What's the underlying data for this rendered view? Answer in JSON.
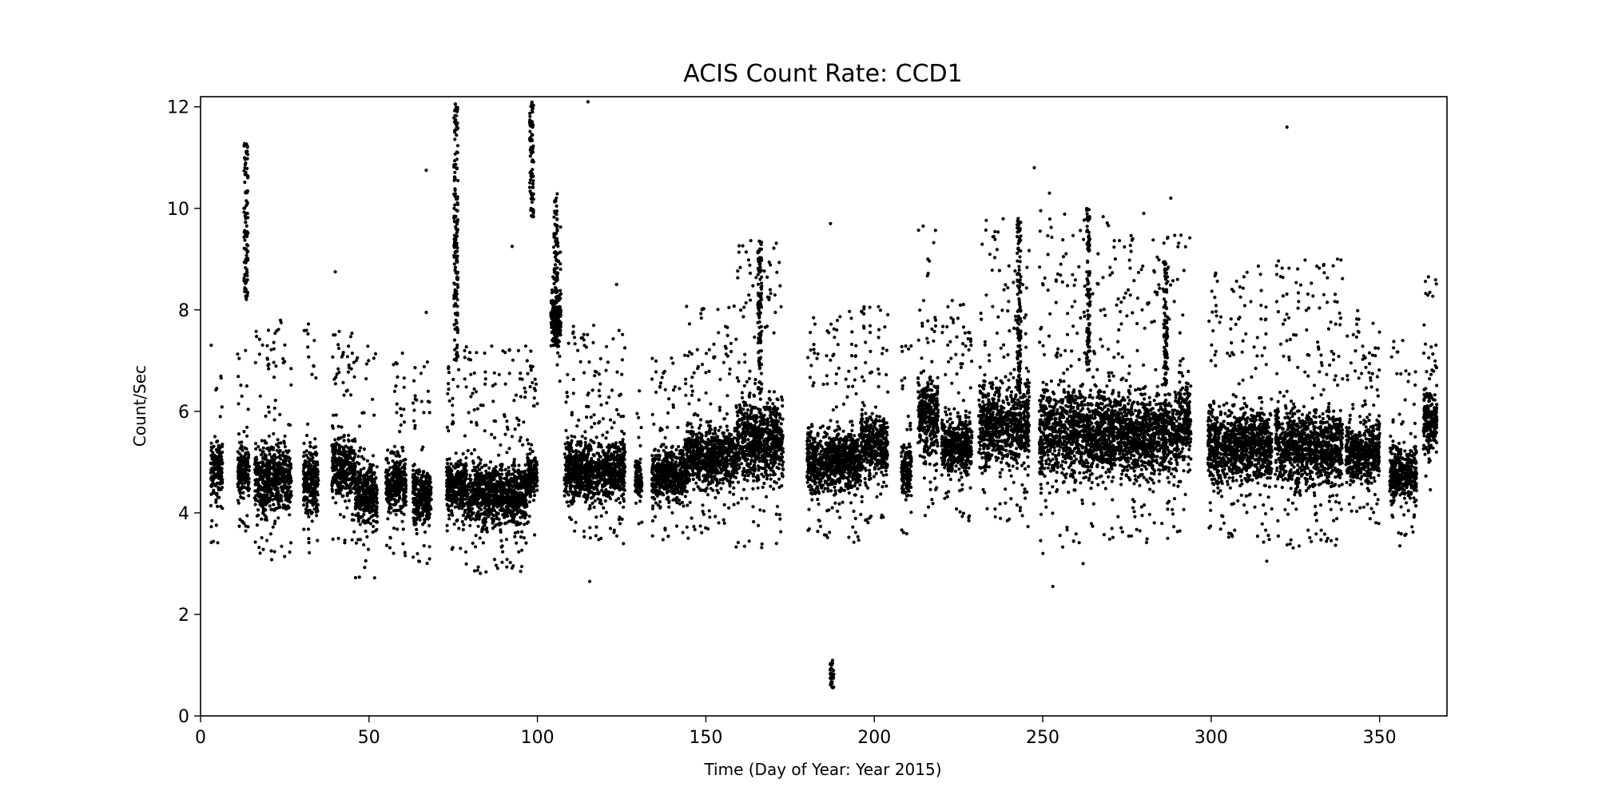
{
  "chart_data": {
    "type": "scatter",
    "title": "ACIS Count Rate: CCD1",
    "xlabel": "Time (Day of Year: Year 2015)",
    "ylabel": "Count/Sec",
    "xlim": [
      0,
      370
    ],
    "ylim": [
      0,
      12.2
    ],
    "x_ticks": [
      0,
      50,
      100,
      150,
      200,
      250,
      300,
      350
    ],
    "y_ticks": [
      0,
      2,
      4,
      6,
      8,
      10,
      12
    ],
    "grid": false,
    "legend": "none",
    "marker_color": "#000000",
    "observation_windows": [
      {
        "x": [
          3,
          6.5
        ],
        "y": [
          3.3,
          7.7
        ]
      },
      {
        "x": [
          11,
          14.5
        ],
        "y": [
          3.5,
          7.2
        ]
      },
      {
        "x": [
          16,
          27
        ],
        "y": [
          3.0,
          7.8
        ]
      },
      {
        "x": [
          30.5,
          35
        ],
        "y": [
          3.0,
          7.8
        ]
      },
      {
        "x": [
          39,
          46
        ],
        "y": [
          3.4,
          7.6
        ]
      },
      {
        "x": [
          46,
          52.5
        ],
        "y": [
          2.7,
          7.5
        ]
      },
      {
        "x": [
          55,
          61
        ],
        "y": [
          3.1,
          7.3
        ]
      },
      {
        "x": [
          63,
          68.5
        ],
        "y": [
          2.9,
          7.0
        ]
      },
      {
        "x": [
          73,
          78
        ],
        "y": [
          3.2,
          7.0
        ]
      },
      {
        "x": [
          78,
          97
        ],
        "y": [
          2.8,
          7.3
        ]
      },
      {
        "x": [
          97,
          100
        ],
        "y": [
          3.4,
          7.2
        ]
      },
      {
        "x": [
          104,
          107
        ],
        "y": [
          6.5,
          10.3
        ]
      },
      {
        "x": [
          108,
          126
        ],
        "y": [
          3.3,
          7.7
        ]
      },
      {
        "x": [
          129,
          131
        ],
        "y": [
          3.7,
          6.5
        ]
      },
      {
        "x": [
          134,
          144
        ],
        "y": [
          3.4,
          7.3
        ]
      },
      {
        "x": [
          144,
          159
        ],
        "y": [
          3.5,
          8.1
        ]
      },
      {
        "x": [
          159,
          173
        ],
        "y": [
          3.3,
          9.4
        ]
      },
      {
        "x": [
          180,
          196
        ],
        "y": [
          3.4,
          8.0
        ]
      },
      {
        "x": [
          196,
          204
        ],
        "y": [
          3.8,
          8.2
        ]
      },
      {
        "x": [
          208,
          211
        ],
        "y": [
          3.5,
          7.3
        ]
      },
      {
        "x": [
          213,
          219
        ],
        "y": [
          3.9,
          9.7
        ]
      },
      {
        "x": [
          220,
          229
        ],
        "y": [
          3.8,
          8.2
        ]
      },
      {
        "x": [
          231,
          246
        ],
        "y": [
          3.6,
          9.8
        ]
      },
      {
        "x": [
          249,
          270
        ],
        "y": [
          3.2,
          10.0
        ]
      },
      {
        "x": [
          270,
          290
        ],
        "y": [
          3.4,
          9.5
        ]
      },
      {
        "x": [
          290,
          294
        ],
        "y": [
          3.6,
          9.9
        ]
      },
      {
        "x": [
          299,
          318
        ],
        "y": [
          3.4,
          8.9
        ]
      },
      {
        "x": [
          319,
          339
        ],
        "y": [
          3.3,
          9.0
        ]
      },
      {
        "x": [
          340,
          350
        ],
        "y": [
          3.7,
          8.0
        ]
      },
      {
        "x": [
          353,
          361
        ],
        "y": [
          3.4,
          7.4
        ]
      },
      {
        "x": [
          363,
          367
        ],
        "y": [
          4.2,
          8.7
        ]
      }
    ],
    "flare_columns": [
      {
        "x": 13.5,
        "y": [
          8.2,
          11.3
        ]
      },
      {
        "x": 75.8,
        "y": [
          7.0,
          12.1
        ]
      },
      {
        "x": 98.3,
        "y": [
          9.8,
          12.1
        ]
      },
      {
        "x": 105.5,
        "y": [
          7.3,
          10.3
        ]
      },
      {
        "x": 166,
        "y": [
          6.4,
          9.4
        ]
      },
      {
        "x": 243,
        "y": [
          6.5,
          9.8
        ]
      },
      {
        "x": 263.5,
        "y": [
          6.8,
          10.0
        ]
      },
      {
        "x": 286.5,
        "y": [
          6.5,
          9.0
        ]
      },
      {
        "x": 187.5,
        "y": [
          0.5,
          1.1
        ]
      }
    ],
    "isolated_points": [
      {
        "x": 40,
        "y": 8.75
      },
      {
        "x": 67,
        "y": 10.75
      },
      {
        "x": 67,
        "y": 7.95
      },
      {
        "x": 92.5,
        "y": 9.25
      },
      {
        "x": 115,
        "y": 12.1
      },
      {
        "x": 115.5,
        "y": 2.65
      },
      {
        "x": 123.5,
        "y": 8.5
      },
      {
        "x": 187,
        "y": 9.7
      },
      {
        "x": 214.5,
        "y": 9.65
      },
      {
        "x": 247.5,
        "y": 10.8
      },
      {
        "x": 252,
        "y": 10.3
      },
      {
        "x": 253,
        "y": 2.55
      },
      {
        "x": 262,
        "y": 3.0
      },
      {
        "x": 280,
        "y": 9.9
      },
      {
        "x": 288,
        "y": 10.2
      },
      {
        "x": 316.5,
        "y": 3.05
      },
      {
        "x": 322.5,
        "y": 11.6
      },
      {
        "x": 337.5,
        "y": 9.0
      },
      {
        "x": 356,
        "y": 3.35
      },
      {
        "x": 364.5,
        "y": 8.65
      }
    ]
  }
}
